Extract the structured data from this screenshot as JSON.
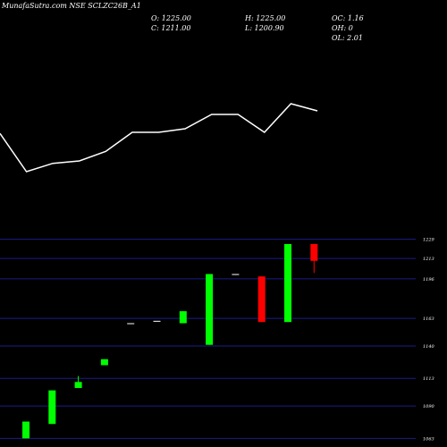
{
  "header": {
    "title": "MunafaSutra.com NSE SCLZC26B_A1",
    "open": "O: 1225.00",
    "high": "H: 1225.00",
    "oc": "OC: 1.16",
    "close": "C: 1211.00",
    "low": "L: 1200.90",
    "oh": "OH: 0",
    "ol": "OL: 2.01"
  },
  "colors": {
    "background": "#000000",
    "line": "#ffffff",
    "grid": "#1c1c8a",
    "up": "#00ff00",
    "down": "#ff0000"
  },
  "chart_data": [
    {
      "type": "line",
      "x": [
        1,
        2,
        3,
        4,
        5,
        6,
        7,
        8,
        9,
        10,
        11,
        12,
        13
      ],
      "values": [
        1092,
        1060,
        1067,
        1069,
        1077,
        1093,
        1093,
        1096,
        1108,
        1108,
        1093,
        1117,
        1111
      ],
      "grid": false
    },
    {
      "type": "candlestick",
      "ylim": [
        1061,
        1225
      ],
      "yticks": [
        "1229",
        "1213",
        "1196",
        "1163",
        "1140",
        "1113",
        "1090",
        "1063"
      ],
      "grid": true,
      "candles": [
        {
          "open": 1063,
          "high": 1077,
          "low": 1063,
          "close": 1077
        },
        {
          "open": 1075,
          "high": 1103,
          "low": 1075,
          "close": 1103
        },
        {
          "open": 1105,
          "high": 1115,
          "low": 1105,
          "close": 1110
        },
        {
          "open": 1124,
          "high": 1129,
          "low": 1124,
          "close": 1129
        },
        {
          "open": 1159,
          "high": 1159,
          "low": 1159,
          "close": 1159
        },
        {
          "open": 1161,
          "high": 1161,
          "low": 1161,
          "close": 1161
        },
        {
          "open": 1159,
          "high": 1169,
          "low": 1159,
          "close": 1169
        },
        {
          "open": 1141,
          "high": 1200,
          "low": 1141,
          "close": 1200
        },
        {
          "open": 1200,
          "high": 1200,
          "low": 1200,
          "close": 1200
        },
        {
          "open": 1198,
          "high": 1198,
          "low": 1160,
          "close": 1160
        },
        {
          "open": 1160,
          "high": 1225,
          "low": 1160,
          "close": 1225
        },
        {
          "open": 1225,
          "high": 1225,
          "low": 1200.9,
          "close": 1211
        }
      ]
    }
  ]
}
